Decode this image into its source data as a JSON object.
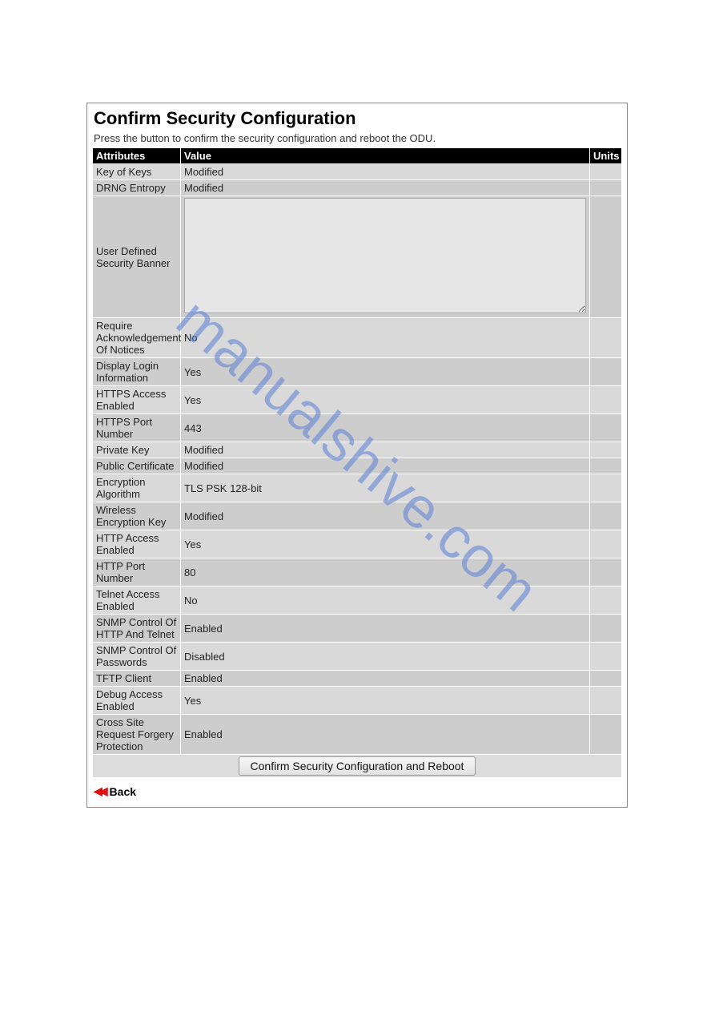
{
  "title": "Confirm Security Configuration",
  "subtitle": "Press the button to confirm the security configuration and reboot the ODU.",
  "headers": {
    "attributes": "Attributes",
    "value": "Value",
    "units": "Units"
  },
  "rows": [
    {
      "attr": "Key of Keys",
      "value": "Modified",
      "units": "",
      "shade": "a"
    },
    {
      "attr": "DRNG Entropy",
      "value": "Modified",
      "units": "",
      "shade": "b"
    },
    {
      "attr": "User Defined Security Banner",
      "value": "",
      "units": "",
      "shade": "b",
      "banner": true
    },
    {
      "attr": "Require Acknowledgement Of Notices",
      "value": "No",
      "units": "",
      "shade": "a"
    },
    {
      "attr": "Display Login Information",
      "value": "Yes",
      "units": "",
      "shade": "b"
    },
    {
      "attr": "HTTPS Access Enabled",
      "value": "Yes",
      "units": "",
      "shade": "a"
    },
    {
      "attr": "HTTPS Port Number",
      "value": "443",
      "units": "",
      "shade": "b"
    },
    {
      "attr": "Private Key",
      "value": "Modified",
      "units": "",
      "shade": "a"
    },
    {
      "attr": "Public Certificate",
      "value": "Modified",
      "units": "",
      "shade": "b"
    },
    {
      "attr": "Encryption Algorithm",
      "value": "TLS PSK 128-bit",
      "units": "",
      "shade": "a"
    },
    {
      "attr": "Wireless Encryption Key",
      "value": "Modified",
      "units": "",
      "shade": "b"
    },
    {
      "attr": "HTTP Access Enabled",
      "value": "Yes",
      "units": "",
      "shade": "a"
    },
    {
      "attr": "HTTP Port Number",
      "value": "80",
      "units": "",
      "shade": "b"
    },
    {
      "attr": "Telnet Access Enabled",
      "value": "No",
      "units": "",
      "shade": "a"
    },
    {
      "attr": "SNMP Control Of HTTP And Telnet",
      "value": "Enabled",
      "units": "",
      "shade": "b"
    },
    {
      "attr": "SNMP Control Of Passwords",
      "value": "Disabled",
      "units": "",
      "shade": "a"
    },
    {
      "attr": "TFTP Client",
      "value": "Enabled",
      "units": "",
      "shade": "b"
    },
    {
      "attr": "Debug Access Enabled",
      "value": "Yes",
      "units": "",
      "shade": "a"
    },
    {
      "attr": "Cross Site Request Forgery Protection",
      "value": "Enabled",
      "units": "",
      "shade": "b"
    }
  ],
  "confirm_button": "Confirm Security Configuration and Reboot",
  "back_label": "Back",
  "watermark": "manualshive.com",
  "colors": {
    "header_bg": "#000000",
    "header_fg": "#ffffff",
    "row_a": "#d9d9d9",
    "row_b": "#cdcdcd",
    "watermark": "#5a7fd6",
    "back_arrow": "#dd1111"
  }
}
